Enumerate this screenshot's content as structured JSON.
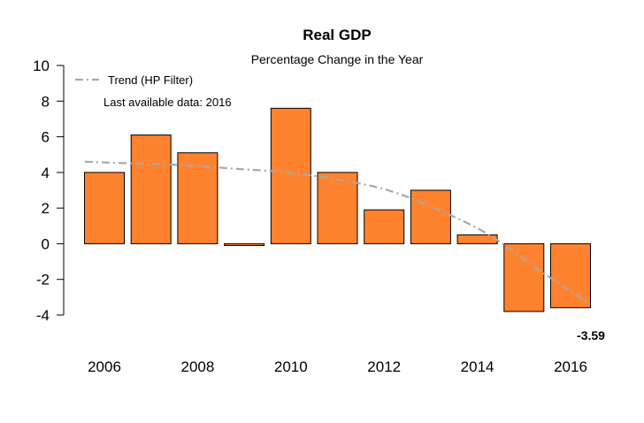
{
  "chart_data": {
    "type": "bar",
    "title": "Real GDP",
    "subtitle": "Percentage Change in the Year",
    "xlabel": "",
    "ylabel": "",
    "categories": [
      "2006",
      "2007",
      "2008",
      "2009",
      "2010",
      "2011",
      "2012",
      "2013",
      "2014",
      "2015",
      "2016"
    ],
    "series": [
      {
        "values": [
          4.0,
          6.1,
          5.1,
          -0.1,
          7.6,
          4.0,
          1.9,
          3.0,
          0.5,
          -3.8,
          -3.59
        ],
        "color": "#FF822E"
      }
    ],
    "trend": {
      "name": "Trend (HP Filter)",
      "color": "#A8A8A8",
      "values": [
        4.6,
        4.5,
        4.4,
        4.2,
        4.0,
        3.6,
        3.0,
        1.9,
        0.5,
        -1.5,
        -3.4
      ]
    },
    "x_tick_labels": [
      "2006",
      "2008",
      "2010",
      "2012",
      "2014",
      "2016"
    ],
    "y_ticks": [
      -4,
      -2,
      0,
      2,
      4,
      6,
      8,
      10
    ],
    "ylim": [
      -4,
      10
    ],
    "grid": false,
    "legend_position": "top-left",
    "note": "Last available data: 2016",
    "last_value_label": "-3.59"
  }
}
